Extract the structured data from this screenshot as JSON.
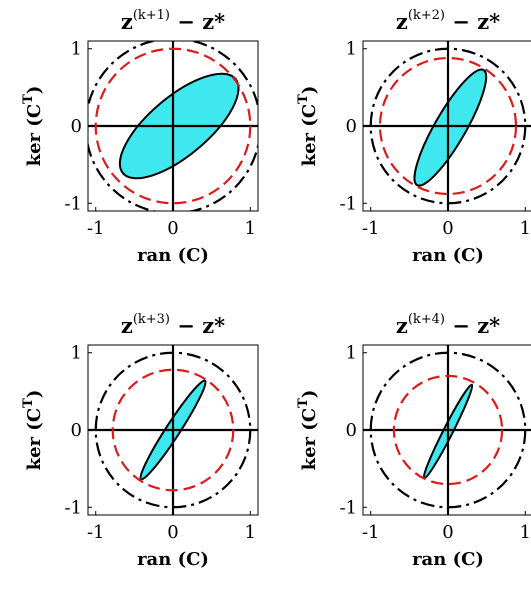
{
  "panels": [
    {
      "title_base": "z",
      "title_sup": "(k+1)",
      "title_rest": " − z*",
      "xlabel": "ran (C)",
      "ylabel": "ker (C",
      "ylabel_sup": "T",
      "ylabel_close": ")",
      "xticks": [
        "-1",
        "0",
        "1"
      ],
      "yticks": [
        "-1",
        "0",
        "1"
      ],
      "outer_circle_radius": 1.13,
      "inner_circle_radius": 1.0,
      "ellipse": {
        "cx": 0.08,
        "cy": 0.0,
        "a": 0.95,
        "b": 0.38,
        "angle_deg": -40
      }
    },
    {
      "title_base": "z",
      "title_sup": "(k+2)",
      "title_rest": " − z*",
      "xlabel": "ran (C)",
      "ylabel": "ker (C",
      "ylabel_sup": "T",
      "ylabel_close": ")",
      "xticks": [
        "-1",
        "0",
        "1"
      ],
      "yticks": [
        "-1",
        "0",
        "1"
      ],
      "outer_circle_radius": 1.0,
      "inner_circle_radius": 0.88,
      "ellipse": {
        "cx": 0.03,
        "cy": -0.02,
        "a": 0.86,
        "b": 0.2,
        "angle_deg": -60
      }
    },
    {
      "title_base": "z",
      "title_sup": "(k+3)",
      "title_rest": " − z*",
      "xlabel": "ran (C)",
      "ylabel": "ker (C",
      "ylabel_sup": "T",
      "ylabel_close": ")",
      "xticks": [
        "-1",
        "0",
        "1"
      ],
      "yticks": [
        "-1",
        "0",
        "1"
      ],
      "outer_circle_radius": 1.0,
      "inner_circle_radius": 0.78,
      "ellipse": {
        "cx": 0.0,
        "cy": 0.0,
        "a": 0.76,
        "b": 0.09,
        "angle_deg": -57
      }
    },
    {
      "title_base": "z",
      "title_sup": "(k+4)",
      "title_rest": " − z*",
      "xlabel": "ran (C)",
      "ylabel": "ker (C",
      "ylabel_sup": "T",
      "ylabel_close": ")",
      "xticks": [
        "-1",
        "0",
        "1"
      ],
      "yticks": [
        "-1",
        "0",
        "1"
      ],
      "outer_circle_radius": 1.0,
      "inner_circle_radius": 0.7,
      "ellipse": {
        "cx": 0.0,
        "cy": -0.02,
        "a": 0.68,
        "b": 0.06,
        "angle_deg": -63
      }
    }
  ],
  "colors": {
    "ellipse_fill": "#3ee8ee",
    "inner_circle": "#dd1a1a",
    "outer_circle": "#000000",
    "axes": "#000000"
  }
}
